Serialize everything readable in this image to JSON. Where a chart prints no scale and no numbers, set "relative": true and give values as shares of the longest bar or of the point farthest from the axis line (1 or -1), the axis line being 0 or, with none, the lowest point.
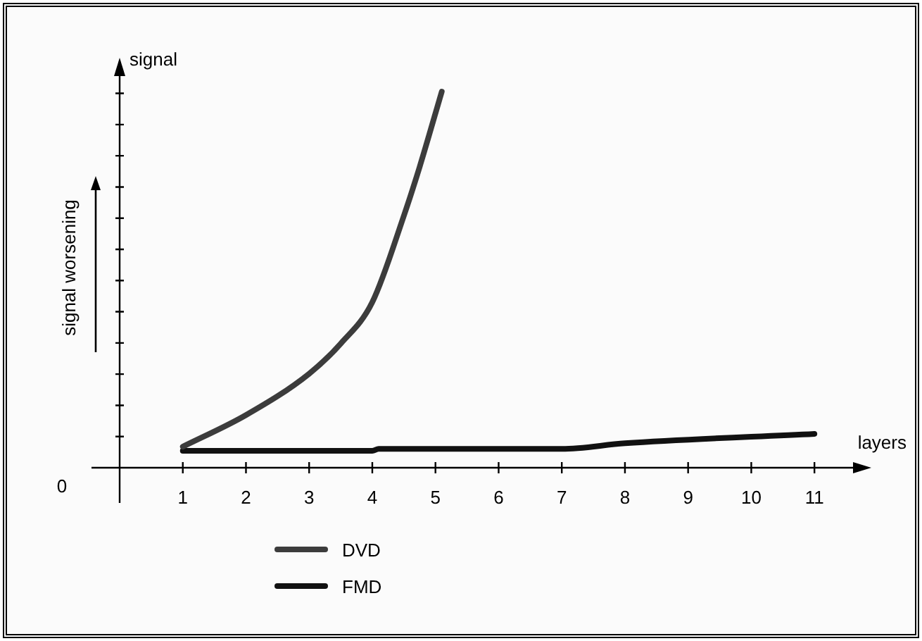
{
  "chart_data": {
    "type": "line",
    "xlabel": "layers",
    "ylabel": "signal worsening",
    "annotations": [
      "signal",
      "0"
    ],
    "relative": true,
    "xlim": [
      0,
      11.7
    ],
    "xticks": [
      1,
      2,
      3,
      4,
      5,
      6,
      7,
      8,
      9,
      10,
      11
    ],
    "grid": false,
    "legend": "bottom left",
    "marker": "none",
    "line_style": "solid",
    "series": [
      {
        "name": "DVD",
        "color": "#3c3c3c",
        "x": [
          1,
          2,
          3,
          3.5,
          4,
          4.5,
          4.75,
          5.1
        ],
        "values": [
          0.056,
          0.14,
          0.25,
          0.33,
          0.44,
          0.67,
          0.8,
          1
        ]
      },
      {
        "name": "FMD",
        "color": "#111111",
        "x": [
          1,
          4,
          4.1,
          7,
          8,
          11
        ],
        "values": [
          0.045,
          0.045,
          0.05,
          0.05,
          0.065,
          0.09
        ]
      }
    ]
  }
}
